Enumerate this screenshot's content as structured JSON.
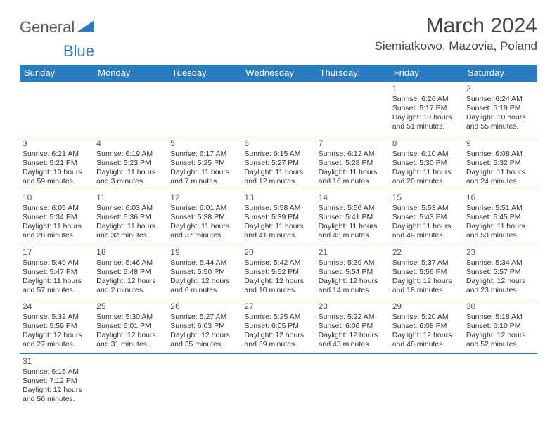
{
  "brand": {
    "part1": "General",
    "part2": "Blue"
  },
  "title": "March 2024",
  "location": "Siemiatkowo, Mazovia, Poland",
  "colors": {
    "headerBg": "#2a7bbf",
    "headerText": "#ffffff",
    "border": "#2a7bbf",
    "text": "#333333",
    "logoGray": "#5a5a5a",
    "logoBlue": "#2a7bbf"
  },
  "dayHeaders": [
    "Sunday",
    "Monday",
    "Tuesday",
    "Wednesday",
    "Thursday",
    "Friday",
    "Saturday"
  ],
  "weeks": [
    [
      null,
      null,
      null,
      null,
      null,
      {
        "n": "1",
        "sr": "Sunrise: 6:26 AM",
        "ss": "Sunset: 5:17 PM",
        "d1": "Daylight: 10 hours",
        "d2": "and 51 minutes."
      },
      {
        "n": "2",
        "sr": "Sunrise: 6:24 AM",
        "ss": "Sunset: 5:19 PM",
        "d1": "Daylight: 10 hours",
        "d2": "and 55 minutes."
      }
    ],
    [
      {
        "n": "3",
        "sr": "Sunrise: 6:21 AM",
        "ss": "Sunset: 5:21 PM",
        "d1": "Daylight: 10 hours",
        "d2": "and 59 minutes."
      },
      {
        "n": "4",
        "sr": "Sunrise: 6:19 AM",
        "ss": "Sunset: 5:23 PM",
        "d1": "Daylight: 11 hours",
        "d2": "and 3 minutes."
      },
      {
        "n": "5",
        "sr": "Sunrise: 6:17 AM",
        "ss": "Sunset: 5:25 PM",
        "d1": "Daylight: 11 hours",
        "d2": "and 7 minutes."
      },
      {
        "n": "6",
        "sr": "Sunrise: 6:15 AM",
        "ss": "Sunset: 5:27 PM",
        "d1": "Daylight: 11 hours",
        "d2": "and 12 minutes."
      },
      {
        "n": "7",
        "sr": "Sunrise: 6:12 AM",
        "ss": "Sunset: 5:28 PM",
        "d1": "Daylight: 11 hours",
        "d2": "and 16 minutes."
      },
      {
        "n": "8",
        "sr": "Sunrise: 6:10 AM",
        "ss": "Sunset: 5:30 PM",
        "d1": "Daylight: 11 hours",
        "d2": "and 20 minutes."
      },
      {
        "n": "9",
        "sr": "Sunrise: 6:08 AM",
        "ss": "Sunset: 5:32 PM",
        "d1": "Daylight: 11 hours",
        "d2": "and 24 minutes."
      }
    ],
    [
      {
        "n": "10",
        "sr": "Sunrise: 6:05 AM",
        "ss": "Sunset: 5:34 PM",
        "d1": "Daylight: 11 hours",
        "d2": "and 28 minutes."
      },
      {
        "n": "11",
        "sr": "Sunrise: 6:03 AM",
        "ss": "Sunset: 5:36 PM",
        "d1": "Daylight: 11 hours",
        "d2": "and 32 minutes."
      },
      {
        "n": "12",
        "sr": "Sunrise: 6:01 AM",
        "ss": "Sunset: 5:38 PM",
        "d1": "Daylight: 11 hours",
        "d2": "and 37 minutes."
      },
      {
        "n": "13",
        "sr": "Sunrise: 5:58 AM",
        "ss": "Sunset: 5:39 PM",
        "d1": "Daylight: 11 hours",
        "d2": "and 41 minutes."
      },
      {
        "n": "14",
        "sr": "Sunrise: 5:56 AM",
        "ss": "Sunset: 5:41 PM",
        "d1": "Daylight: 11 hours",
        "d2": "and 45 minutes."
      },
      {
        "n": "15",
        "sr": "Sunrise: 5:53 AM",
        "ss": "Sunset: 5:43 PM",
        "d1": "Daylight: 11 hours",
        "d2": "and 49 minutes."
      },
      {
        "n": "16",
        "sr": "Sunrise: 5:51 AM",
        "ss": "Sunset: 5:45 PM",
        "d1": "Daylight: 11 hours",
        "d2": "and 53 minutes."
      }
    ],
    [
      {
        "n": "17",
        "sr": "Sunrise: 5:49 AM",
        "ss": "Sunset: 5:47 PM",
        "d1": "Daylight: 11 hours",
        "d2": "and 57 minutes."
      },
      {
        "n": "18",
        "sr": "Sunrise: 5:46 AM",
        "ss": "Sunset: 5:48 PM",
        "d1": "Daylight: 12 hours",
        "d2": "and 2 minutes."
      },
      {
        "n": "19",
        "sr": "Sunrise: 5:44 AM",
        "ss": "Sunset: 5:50 PM",
        "d1": "Daylight: 12 hours",
        "d2": "and 6 minutes."
      },
      {
        "n": "20",
        "sr": "Sunrise: 5:42 AM",
        "ss": "Sunset: 5:52 PM",
        "d1": "Daylight: 12 hours",
        "d2": "and 10 minutes."
      },
      {
        "n": "21",
        "sr": "Sunrise: 5:39 AM",
        "ss": "Sunset: 5:54 PM",
        "d1": "Daylight: 12 hours",
        "d2": "and 14 minutes."
      },
      {
        "n": "22",
        "sr": "Sunrise: 5:37 AM",
        "ss": "Sunset: 5:56 PM",
        "d1": "Daylight: 12 hours",
        "d2": "and 18 minutes."
      },
      {
        "n": "23",
        "sr": "Sunrise: 5:34 AM",
        "ss": "Sunset: 5:57 PM",
        "d1": "Daylight: 12 hours",
        "d2": "and 23 minutes."
      }
    ],
    [
      {
        "n": "24",
        "sr": "Sunrise: 5:32 AM",
        "ss": "Sunset: 5:59 PM",
        "d1": "Daylight: 12 hours",
        "d2": "and 27 minutes."
      },
      {
        "n": "25",
        "sr": "Sunrise: 5:30 AM",
        "ss": "Sunset: 6:01 PM",
        "d1": "Daylight: 12 hours",
        "d2": "and 31 minutes."
      },
      {
        "n": "26",
        "sr": "Sunrise: 5:27 AM",
        "ss": "Sunset: 6:03 PM",
        "d1": "Daylight: 12 hours",
        "d2": "and 35 minutes."
      },
      {
        "n": "27",
        "sr": "Sunrise: 5:25 AM",
        "ss": "Sunset: 6:05 PM",
        "d1": "Daylight: 12 hours",
        "d2": "and 39 minutes."
      },
      {
        "n": "28",
        "sr": "Sunrise: 5:22 AM",
        "ss": "Sunset: 6:06 PM",
        "d1": "Daylight: 12 hours",
        "d2": "and 43 minutes."
      },
      {
        "n": "29",
        "sr": "Sunrise: 5:20 AM",
        "ss": "Sunset: 6:08 PM",
        "d1": "Daylight: 12 hours",
        "d2": "and 48 minutes."
      },
      {
        "n": "30",
        "sr": "Sunrise: 5:18 AM",
        "ss": "Sunset: 6:10 PM",
        "d1": "Daylight: 12 hours",
        "d2": "and 52 minutes."
      }
    ],
    [
      {
        "n": "31",
        "sr": "Sunrise: 6:15 AM",
        "ss": "Sunset: 7:12 PM",
        "d1": "Daylight: 12 hours",
        "d2": "and 56 minutes."
      },
      null,
      null,
      null,
      null,
      null,
      null
    ]
  ]
}
